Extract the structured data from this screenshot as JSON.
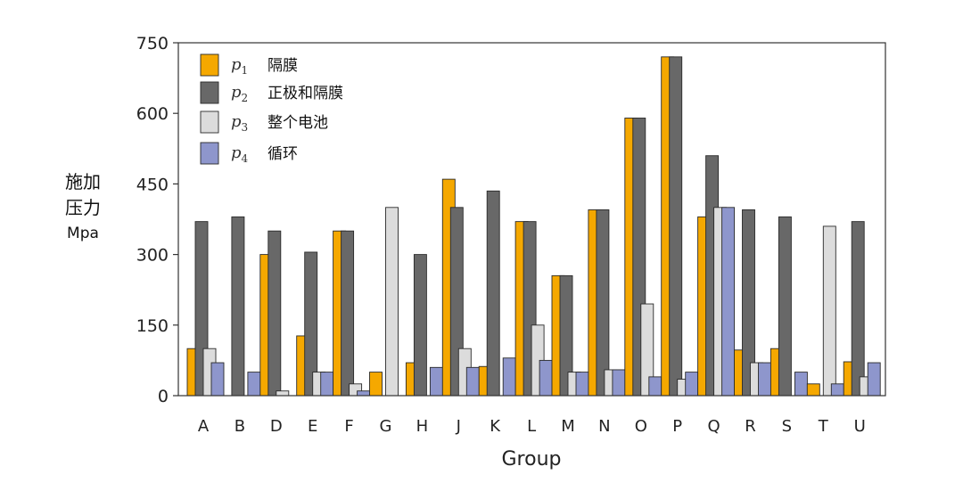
{
  "chart_data": {
    "type": "bar",
    "xlabel": "Group",
    "ylabel": [
      "施加",
      "压力"
    ],
    "ylabel_unit": "Mpa",
    "ylim": [
      0,
      750
    ],
    "yticks": [
      0,
      150,
      300,
      450,
      600,
      750
    ],
    "grid": false,
    "legend_position": "top-left",
    "categories": [
      "A",
      "B",
      "D",
      "E",
      "F",
      "G",
      "H",
      "J",
      "K",
      "L",
      "M",
      "N",
      "O",
      "P",
      "Q",
      "R",
      "S",
      "T",
      "U"
    ],
    "series": [
      {
        "name": "隔膜",
        "symbol": "p",
        "subscript": "1",
        "color": "#f5a800",
        "values": [
          100,
          0,
          300,
          127,
          350,
          50,
          70,
          460,
          62,
          370,
          255,
          395,
          590,
          720,
          380,
          97,
          100,
          25,
          72
        ]
      },
      {
        "name": "正极和隔膜",
        "symbol": "p",
        "subscript": "2",
        "color": "#686868",
        "values": [
          370,
          380,
          350,
          305,
          350,
          0,
          300,
          400,
          435,
          370,
          255,
          395,
          590,
          720,
          510,
          395,
          380,
          0,
          370
        ]
      },
      {
        "name": "整个电池",
        "symbol": "p",
        "subscript": "3",
        "color": "#dcdcdc",
        "values": [
          100,
          0,
          10,
          50,
          25,
          400,
          0,
          100,
          0,
          150,
          50,
          55,
          195,
          35,
          400,
          70,
          0,
          360,
          40
        ]
      },
      {
        "name": "循环",
        "symbol": "p",
        "subscript": "4",
        "color": "#8e96cc",
        "values": [
          70,
          50,
          0,
          50,
          10,
          0,
          60,
          60,
          80,
          75,
          50,
          55,
          40,
          50,
          400,
          70,
          50,
          25,
          70
        ]
      }
    ]
  }
}
